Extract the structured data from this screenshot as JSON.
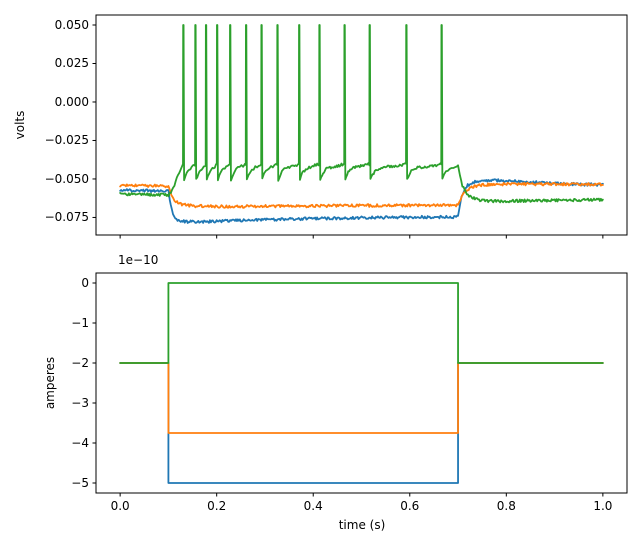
{
  "figure": {
    "background": "#ffffff",
    "frame_color": "#000000",
    "text_color": "#000000"
  },
  "chart_data": [
    {
      "type": "line",
      "title": "",
      "xlabel": "",
      "ylabel": "volts",
      "xlim": [
        -0.05,
        1.05
      ],
      "ylim": [
        -0.0864,
        0.0565
      ],
      "xticks": [
        0.0,
        0.2,
        0.4,
        0.6,
        0.8,
        1.0
      ],
      "xtick_labels": [],
      "yticks": [
        0.05,
        0.025,
        0.0,
        -0.025,
        -0.05,
        -0.075
      ],
      "ytick_labels": [
        "0.050",
        "0.025",
        "0.000",
        "−0.025",
        "−0.050",
        "−0.075"
      ],
      "grid": false,
      "legend": null,
      "series": [
        {
          "name": "cell1-voltage-blue",
          "color": "#1f77b4",
          "noise": 0.0009,
          "points": [
            [
              0,
              -0.0573
            ],
            [
              0.06,
              -0.0576
            ],
            [
              0.1,
              -0.0578
            ],
            [
              0.103,
              -0.064
            ],
            [
              0.107,
              -0.07
            ],
            [
              0.112,
              -0.0743
            ],
            [
              0.119,
              -0.0765
            ],
            [
              0.128,
              -0.0774
            ],
            [
              0.14,
              -0.0778
            ],
            [
              0.17,
              -0.0778
            ],
            [
              0.26,
              -0.0768
            ],
            [
              0.4,
              -0.0757
            ],
            [
              0.55,
              -0.075
            ],
            [
              0.7,
              -0.0746
            ],
            [
              0.703,
              -0.0682
            ],
            [
              0.707,
              -0.0622
            ],
            [
              0.712,
              -0.0576
            ],
            [
              0.72,
              -0.0541
            ],
            [
              0.733,
              -0.0521
            ],
            [
              0.75,
              -0.0512
            ],
            [
              0.775,
              -0.0509
            ],
            [
              0.82,
              -0.0514
            ],
            [
              0.88,
              -0.0525
            ],
            [
              0.95,
              -0.0534
            ],
            [
              1.0,
              -0.0539
            ]
          ]
        },
        {
          "name": "cell2-voltage-orange",
          "color": "#ff7f0e",
          "noise": 0.0009,
          "points": [
            [
              0,
              -0.0541
            ],
            [
              0.06,
              -0.0544
            ],
            [
              0.1,
              -0.0546
            ],
            [
              0.104,
              -0.0586
            ],
            [
              0.11,
              -0.0626
            ],
            [
              0.118,
              -0.0652
            ],
            [
              0.13,
              -0.0667
            ],
            [
              0.15,
              -0.0675
            ],
            [
              0.21,
              -0.0679
            ],
            [
              0.35,
              -0.0677
            ],
            [
              0.5,
              -0.0673
            ],
            [
              0.7,
              -0.067
            ],
            [
              0.704,
              -0.0634
            ],
            [
              0.71,
              -0.0599
            ],
            [
              0.718,
              -0.0571
            ],
            [
              0.73,
              -0.0552
            ],
            [
              0.748,
              -0.054
            ],
            [
              0.78,
              -0.0534
            ],
            [
              0.85,
              -0.0533
            ],
            [
              0.95,
              -0.0535
            ],
            [
              1.0,
              -0.0536
            ]
          ]
        },
        {
          "name": "cell3-voltage-green-spiking",
          "color": "#2ca02c",
          "noise": 0.0009,
          "spiking": {
            "pre": [
              [
                0,
                -0.0598
              ],
              [
                0.05,
                -0.0602
              ],
              [
                0.1,
                -0.0604
              ],
              [
                0.105,
                -0.0585
              ],
              [
                0.11,
                -0.0556
              ],
              [
                0.115,
                -0.0516
              ],
              [
                0.12,
                -0.0478
              ],
              [
                0.124,
                -0.0448
              ],
              [
                0.1278,
                -0.0418
              ]
            ],
            "spike_times": [
              0.131,
              0.156,
              0.178,
              0.201,
              0.228,
              0.261,
              0.293,
              0.326,
              0.371,
              0.413,
              0.465,
              0.517,
              0.593,
              0.666
            ],
            "v_peak": 0.05,
            "v_threshold": -0.0405,
            "v_reset": -0.0505,
            "v_plateau": -0.0425,
            "tau": 0.007,
            "stim_end": 0.7,
            "post": [
              [
                0.7,
                -0.0418
              ],
              [
                0.704,
                -0.0482
              ],
              [
                0.709,
                -0.0542
              ],
              [
                0.716,
                -0.0586
              ],
              [
                0.725,
                -0.0614
              ],
              [
                0.737,
                -0.0632
              ],
              [
                0.752,
                -0.0641
              ],
              [
                0.775,
                -0.0644
              ],
              [
                0.83,
                -0.0642
              ],
              [
                0.92,
                -0.0638
              ],
              [
                1.0,
                -0.0635
              ]
            ]
          }
        }
      ]
    },
    {
      "type": "step",
      "title": "",
      "xlabel": "time (s)",
      "ylabel": "amperes",
      "offset_label": "1e−10",
      "unit_scale": "1e-10",
      "xlim": [
        -0.05,
        1.05
      ],
      "ylim": [
        -5.25,
        0.25
      ],
      "xticks": [
        0.0,
        0.2,
        0.4,
        0.6,
        0.8,
        1.0
      ],
      "xtick_labels": [
        "0.0",
        "0.2",
        "0.4",
        "0.6",
        "0.8",
        "1.0"
      ],
      "yticks": [
        0,
        -1,
        -2,
        -3,
        -4,
        -5
      ],
      "ytick_labels": [
        "0",
        "−1",
        "−2",
        "−3",
        "−4",
        "−5"
      ],
      "grid": false,
      "legend": null,
      "series": [
        {
          "name": "cell1-current-blue",
          "color": "#1f77b4",
          "points": [
            [
              0,
              -2
            ],
            [
              0.1,
              -2
            ],
            [
              0.1,
              -5
            ],
            [
              0.7,
              -5
            ],
            [
              0.7,
              -2
            ],
            [
              1.0,
              -2
            ]
          ]
        },
        {
          "name": "cell2-current-orange",
          "color": "#ff7f0e",
          "points": [
            [
              0,
              -2
            ],
            [
              0.1,
              -2
            ],
            [
              0.1,
              -3.75
            ],
            [
              0.7,
              -3.75
            ],
            [
              0.7,
              -2
            ],
            [
              1.0,
              -2
            ]
          ]
        },
        {
          "name": "cell3-current-green",
          "color": "#2ca02c",
          "points": [
            [
              0,
              -2
            ],
            [
              0.1,
              -2
            ],
            [
              0.1,
              0
            ],
            [
              0.7,
              0
            ],
            [
              0.7,
              -2
            ],
            [
              1.0,
              -2
            ]
          ]
        }
      ]
    }
  ]
}
